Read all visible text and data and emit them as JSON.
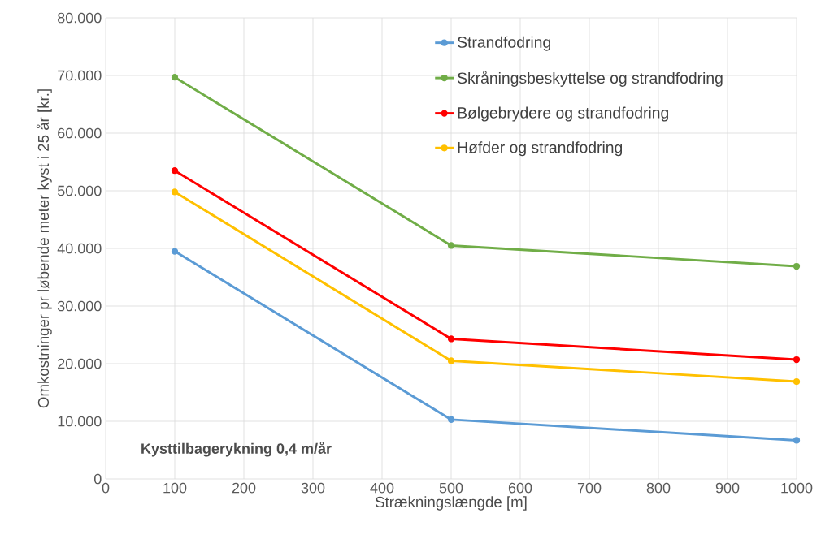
{
  "chart_data": {
    "type": "line",
    "xlabel": "Strækningslængde [m]",
    "ylabel": "Omkostninger pr løbende meter kyst i 25 år [kr.]",
    "x": [
      100,
      500,
      1000
    ],
    "series": [
      {
        "name": "Strandfodring",
        "color": "#5b9bd5",
        "values": [
          39500,
          10300,
          6700
        ]
      },
      {
        "name": "Skråningsbeskyttelse og strandfodring",
        "color": "#70ad47",
        "values": [
          69700,
          40500,
          36900
        ]
      },
      {
        "name": "Bølgebrydere og strandfodring",
        "color": "#ff0000",
        "values": [
          53500,
          24300,
          20700
        ]
      },
      {
        "name": "Høfder og strandfodring",
        "color": "#ffc000",
        "values": [
          49800,
          20500,
          16900
        ]
      }
    ],
    "xlim": [
      0,
      1000
    ],
    "xticks": [
      0,
      100,
      200,
      300,
      400,
      500,
      600,
      700,
      800,
      900,
      1000
    ],
    "ylim": [
      0,
      80000
    ],
    "yticks": [
      0,
      {
        "value": 10000,
        "label": "10.000"
      },
      {
        "value": 20000,
        "label": "20.000"
      },
      {
        "value": 30000,
        "label": "30.000"
      },
      {
        "value": 40000,
        "label": "40.000"
      },
      {
        "value": 50000,
        "label": "50.000"
      },
      {
        "value": 60000,
        "label": "60.000"
      },
      {
        "value": 70000,
        "label": "70.000"
      },
      {
        "value": 80000,
        "label": "80.000"
      }
    ],
    "annotations": [
      "Kysttilbagerykning 0,4 m/år"
    ],
    "grid": true,
    "legend": "top right",
    "marker": "circle",
    "line_style": "solid"
  }
}
